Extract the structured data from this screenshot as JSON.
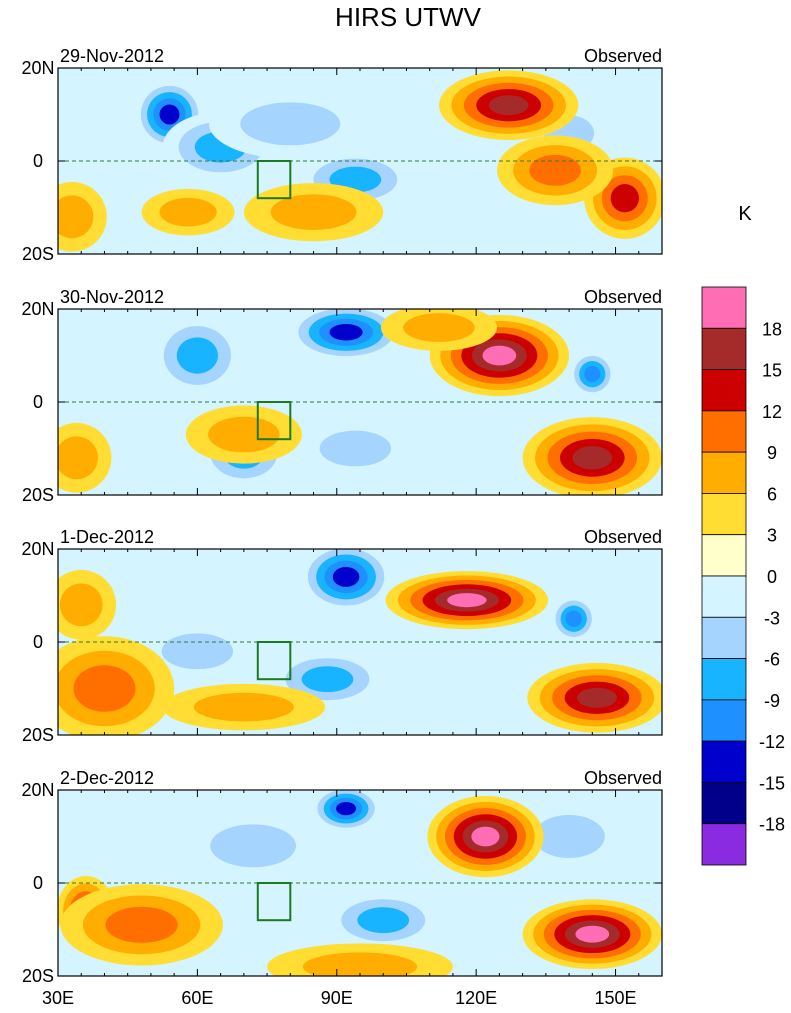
{
  "chart_data": {
    "type": "heatmap",
    "title": "HIRS UTWV",
    "unit_label": "K",
    "x_ticks": [
      "30E",
      "60E",
      "90E",
      "120E",
      "150E"
    ],
    "x_tick_values": [
      30,
      60,
      90,
      120,
      150
    ],
    "xlim": [
      30,
      160
    ],
    "y_ticks": [
      "20N",
      "0",
      "20S"
    ],
    "y_tick_values": [
      20,
      0,
      -20
    ],
    "ylim": [
      -20,
      20
    ],
    "equator_line": "dashed",
    "colorbar": {
      "labels": [
        "18",
        "15",
        "12",
        "9",
        "6",
        "3",
        "0",
        "-3",
        "-6",
        "-9",
        "-12",
        "-15",
        "-18"
      ],
      "levels": [
        18,
        15,
        12,
        9,
        6,
        3,
        0,
        -3,
        -6,
        -9,
        -12,
        -15,
        -18
      ],
      "colors": [
        "#ff6eb4",
        "#a52a2a",
        "#cd0000",
        "#ff6f00",
        "#ffad00",
        "#ffdd33",
        "#ffffcc",
        "#d4f4ff",
        "#a5d4ff",
        "#18b4ff",
        "#1e90ff",
        "#0000cd",
        "#00008b",
        "#8a2be2"
      ]
    },
    "box_region": {
      "lon": [
        73,
        80
      ],
      "lat": [
        -8,
        0
      ]
    },
    "panels": [
      {
        "date": "29-Nov-2012",
        "label": "Observed",
        "blobs": [
          {
            "lon": 33,
            "lat": -12,
            "value": 6,
            "rx": 6,
            "ry": 6
          },
          {
            "lon": 58,
            "lat": -11,
            "value": 6,
            "rx": 8,
            "ry": 4
          },
          {
            "lon": 85,
            "lat": -11,
            "value": 6,
            "rx": 12,
            "ry": 5
          },
          {
            "lon": 54,
            "lat": 10,
            "value": -15,
            "rx": 6,
            "ry": 6
          },
          {
            "lon": 65,
            "lat": 3,
            "value": -9,
            "rx": 10,
            "ry": 6
          },
          {
            "lon": 80,
            "lat": 8,
            "value": -6,
            "rx": 14,
            "ry": 6
          },
          {
            "lon": 94,
            "lat": -4,
            "value": -9,
            "rx": 10,
            "ry": 5
          },
          {
            "lon": 127,
            "lat": 12,
            "value": 15,
            "rx": 12,
            "ry": 6
          },
          {
            "lon": 152,
            "lat": -8,
            "value": 12,
            "rx": 7,
            "ry": 7
          },
          {
            "lon": 137,
            "lat": -2,
            "value": 9,
            "rx": 10,
            "ry": 6
          },
          {
            "lon": 140,
            "lat": 6,
            "value": -6,
            "rx": 7,
            "ry": 5
          }
        ]
      },
      {
        "date": "30-Nov-2012",
        "label": "Observed",
        "blobs": [
          {
            "lon": 34,
            "lat": -12,
            "value": 6,
            "rx": 6,
            "ry": 6
          },
          {
            "lon": 70,
            "lat": -7,
            "value": 6,
            "rx": 10,
            "ry": 5
          },
          {
            "lon": 92,
            "lat": 15,
            "value": -15,
            "rx": 10,
            "ry": 5
          },
          {
            "lon": 60,
            "lat": 10,
            "value": -9,
            "rx": 8,
            "ry": 7
          },
          {
            "lon": 70,
            "lat": -11,
            "value": -9,
            "rx": 8,
            "ry": 6
          },
          {
            "lon": 94,
            "lat": -10,
            "value": -6,
            "rx": 10,
            "ry": 5
          },
          {
            "lon": 125,
            "lat": 10,
            "value": 18,
            "rx": 12,
            "ry": 7
          },
          {
            "lon": 145,
            "lat": -12,
            "value": 15,
            "rx": 12,
            "ry": 7
          },
          {
            "lon": 145,
            "lat": 6,
            "value": -12,
            "rx": 4,
            "ry": 4
          },
          {
            "lon": 112,
            "lat": 16,
            "value": 6,
            "rx": 10,
            "ry": 4
          }
        ]
      },
      {
        "date": "1-Dec-2012",
        "label": "Observed",
        "blobs": [
          {
            "lon": 40,
            "lat": -10,
            "value": 9,
            "rx": 12,
            "ry": 9
          },
          {
            "lon": 35,
            "lat": 8,
            "value": 6,
            "rx": 6,
            "ry": 6
          },
          {
            "lon": 92,
            "lat": 14,
            "value": -15,
            "rx": 8,
            "ry": 6
          },
          {
            "lon": 88,
            "lat": -8,
            "value": -9,
            "rx": 10,
            "ry": 5
          },
          {
            "lon": 118,
            "lat": 9,
            "value": 18,
            "rx": 14,
            "ry": 5
          },
          {
            "lon": 146,
            "lat": -12,
            "value": 15,
            "rx": 12,
            "ry": 6
          },
          {
            "lon": 141,
            "lat": 5,
            "value": -12,
            "rx": 4,
            "ry": 4
          },
          {
            "lon": 70,
            "lat": -14,
            "value": 6,
            "rx": 14,
            "ry": 4
          },
          {
            "lon": 60,
            "lat": -2,
            "value": -6,
            "rx": 10,
            "ry": 5
          }
        ]
      },
      {
        "date": "2-Dec-2012",
        "label": "Observed",
        "blobs": [
          {
            "lon": 36,
            "lat": -6,
            "value": 12,
            "rx": 5,
            "ry": 6
          },
          {
            "lon": 48,
            "lat": -9,
            "value": 9,
            "rx": 14,
            "ry": 7
          },
          {
            "lon": 92,
            "lat": 16,
            "value": -15,
            "rx": 6,
            "ry": 4
          },
          {
            "lon": 72,
            "lat": 8,
            "value": -6,
            "rx": 12,
            "ry": 6
          },
          {
            "lon": 100,
            "lat": -8,
            "value": -9,
            "rx": 10,
            "ry": 5
          },
          {
            "lon": 122,
            "lat": 10,
            "value": 18,
            "rx": 10,
            "ry": 7
          },
          {
            "lon": 145,
            "lat": -11,
            "value": 18,
            "rx": 12,
            "ry": 6
          },
          {
            "lon": 140,
            "lat": 10,
            "value": -6,
            "rx": 10,
            "ry": 6
          },
          {
            "lon": 95,
            "lat": -18,
            "value": 6,
            "rx": 16,
            "ry": 4
          }
        ]
      }
    ]
  }
}
